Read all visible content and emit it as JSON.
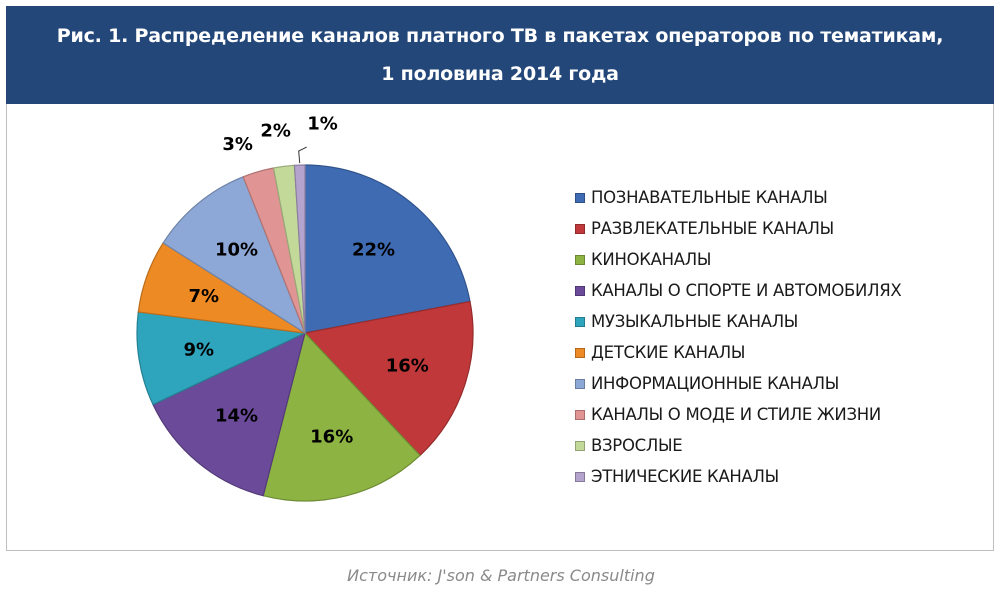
{
  "header": {
    "title_line1": "Рис. 1. Распределение каналов платного ТВ в пакетах операторов по тематикам,",
    "title_line2": "1 половина 2014 года"
  },
  "source": "Источник: J'son & Partners Consulting",
  "chart_data": {
    "type": "pie",
    "title": "Рис. 1. Распределение каналов платного ТВ в пакетах операторов по тематикам, 1 половина 2014 года",
    "legend_position": "right",
    "slices": [
      {
        "label": "ПОЗНАВАТЕЛЬНЫЕ КАНАЛЫ",
        "value": 22,
        "display": "22%",
        "color": "#3f6bb3"
      },
      {
        "label": "РАЗВЛЕКАТЕЛЬНЫЕ КАНАЛЫ",
        "value": 16,
        "display": "16%",
        "color": "#c0383a"
      },
      {
        "label": "КИНОКАНАЛЫ",
        "value": 16,
        "display": "16%",
        "color": "#8db443"
      },
      {
        "label": "КАНАЛЫ О СПОРТЕ И АВТОМОБИЛЯХ",
        "value": 14,
        "display": "14%",
        "color": "#6b4a9a"
      },
      {
        "label": "МУЗЫКАЛЬНЫЕ КАНАЛЫ",
        "value": 9,
        "display": "9%",
        "color": "#2fa4bd"
      },
      {
        "label": "ДЕТСКИЕ КАНАЛЫ",
        "value": 7,
        "display": "7%",
        "color": "#ee8a23"
      },
      {
        "label": "ИНФОРМАЦИОННЫЕ КАНАЛЫ",
        "value": 10,
        "display": "10%",
        "color": "#8da8d6"
      },
      {
        "label": "КАНАЛЫ О МОДЕ И СТИЛЕ ЖИЗНИ",
        "value": 3,
        "display": "3%",
        "color": "#e09493"
      },
      {
        "label": "ВЗРОСЛЫЕ",
        "value": 2,
        "display": "2%",
        "color": "#c3d99a"
      },
      {
        "label": "ЭТНИЧЕСКИЕ КАНАЛЫ",
        "value": 1,
        "display": "1%",
        "color": "#b3a3cd"
      }
    ]
  }
}
